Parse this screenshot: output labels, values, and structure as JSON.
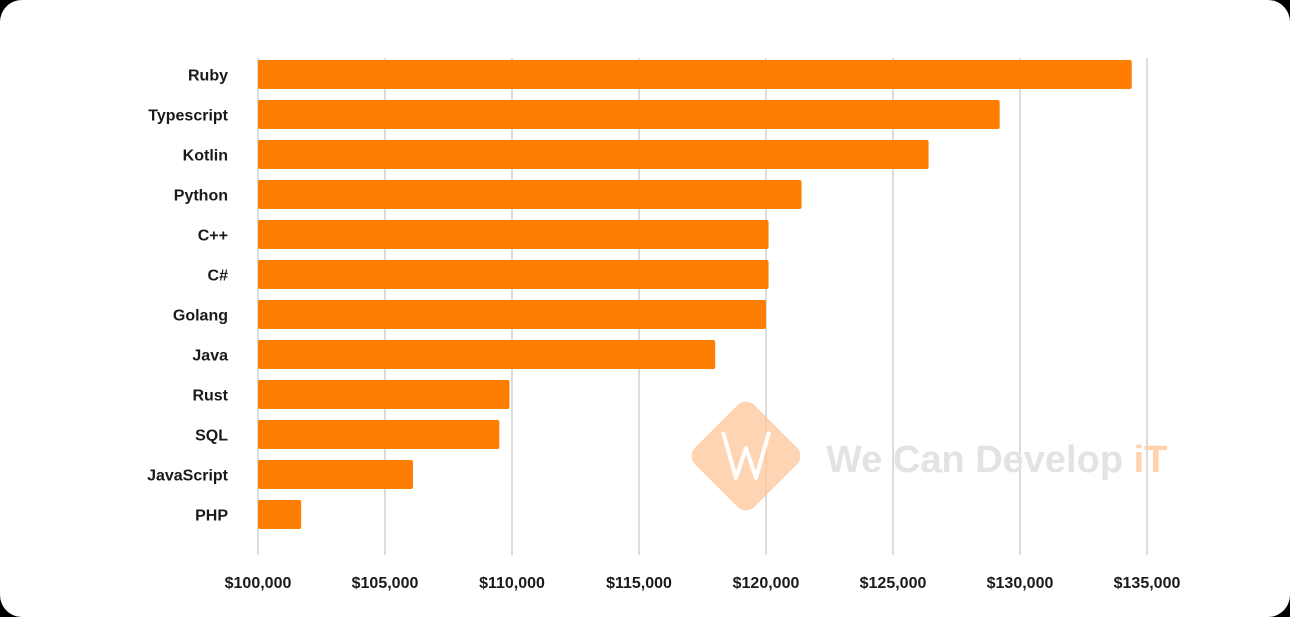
{
  "chart_data": {
    "type": "bar",
    "orientation": "horizontal",
    "categories": [
      "Ruby",
      "Typescript",
      "Kotlin",
      "Python",
      "C++",
      "C#",
      "Golang",
      "Java",
      "Rust",
      "SQL",
      "JavaScript",
      "PHP"
    ],
    "values": [
      134400,
      129200,
      126400,
      121400,
      120100,
      120100,
      120000,
      118000,
      109900,
      109500,
      106100,
      101700
    ],
    "xlim": [
      100000,
      135000
    ],
    "x_ticks": [
      100000,
      105000,
      110000,
      115000,
      120000,
      125000,
      130000,
      135000
    ],
    "x_tick_labels": [
      "$100,000",
      "$105,000",
      "$110,000",
      "$115,000",
      "$120,000",
      "$125,000",
      "$130,000",
      "$135,000"
    ],
    "bar_color": "#ff7d00",
    "grid": "vertical",
    "title": "",
    "xlabel": "",
    "ylabel": ""
  },
  "watermark": {
    "text_main": "We Can Develop ",
    "text_accent": "iT",
    "icon": "wecandevelopit-logo-icon",
    "logo_color": "#ffb57a"
  }
}
